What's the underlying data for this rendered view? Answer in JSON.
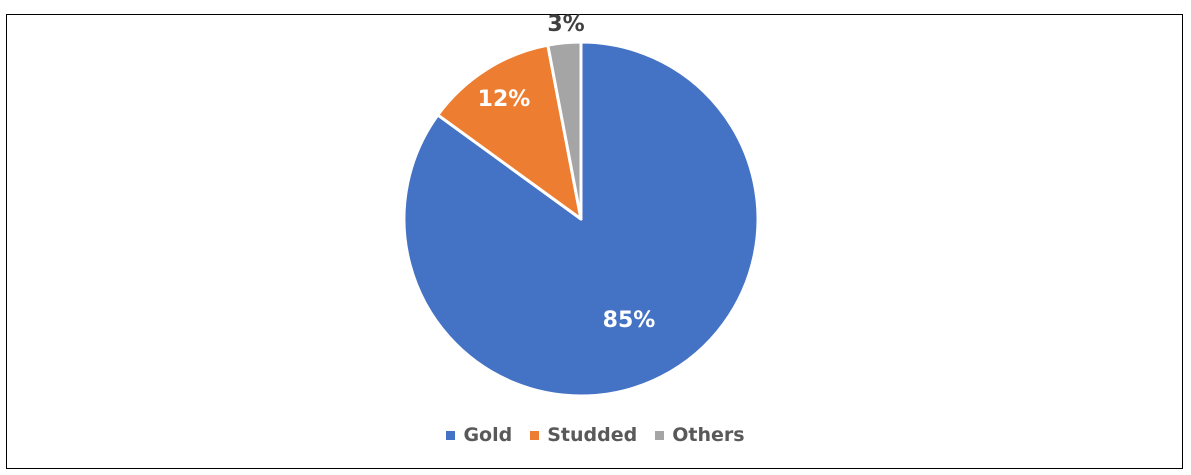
{
  "chart_data": {
    "type": "pie",
    "categories": [
      "Gold",
      "Studded",
      "Others"
    ],
    "values": [
      85,
      12,
      3
    ],
    "labels": [
      "85%",
      "12%",
      "3%"
    ],
    "colors": [
      "#4472C4",
      "#ED7D31",
      "#A5A5A5"
    ],
    "label_colors": [
      "#FFFFFF",
      "#FFFFFF",
      "#404040"
    ],
    "legend_position": "bottom",
    "title": ""
  }
}
